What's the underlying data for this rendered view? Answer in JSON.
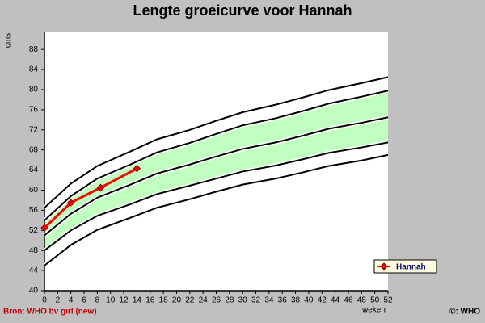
{
  "chart_data": {
    "type": "line",
    "title": "Lengte groeicurve voor Hannah",
    "y_label": "cms",
    "x_label": "weken",
    "source": "Bron: WHO bv girl (new)",
    "copyright": "©: WHO",
    "x": [
      0,
      4,
      8,
      13,
      17,
      22,
      26,
      30,
      35,
      39,
      43,
      48,
      52
    ],
    "series": [
      {
        "color": "#000000",
        "values": [
          56.5,
          61.3,
          64.8,
          67.7,
          70.1,
          72.0,
          73.8,
          75.5,
          77.0,
          78.4,
          79.9,
          81.3,
          82.5
        ]
      },
      {
        "color": "#000000",
        "values": [
          54,
          58.8,
          62.3,
          65.1,
          67.5,
          69.4,
          71.2,
          72.9,
          74.3,
          75.7,
          77.2,
          78.6,
          79.8
        ]
      },
      {
        "color": "#000000",
        "values": [
          51,
          55.3,
          58.5,
          61.1,
          63.3,
          65.1,
          66.7,
          68.2,
          69.5,
          70.8,
          72.2,
          73.4,
          74.5
        ]
      },
      {
        "color": "#000000",
        "values": [
          48,
          52.0,
          54.9,
          57.2,
          59.2,
          60.9,
          62.3,
          63.7,
          64.9,
          66.1,
          67.4,
          68.5,
          69.5
        ]
      },
      {
        "color": "#000000",
        "values": [
          45,
          49.1,
          52.1,
          54.5,
          56.5,
          58.2,
          59.7,
          61.1,
          62.3,
          63.5,
          64.8,
          65.9,
          67
        ]
      },
      {
        "name": "Hannah",
        "color": "#ff0000",
        "x": [
          0,
          4,
          8.5,
          14
        ],
        "values": [
          52.5,
          57.5,
          60.5,
          64.3
        ]
      }
    ],
    "fill_between": {
      "series": [
        1,
        3
      ],
      "color": "#c0ffc0"
    },
    "xlim": [
      0,
      52
    ],
    "xticks": [
      0,
      2,
      4,
      6,
      8,
      10,
      12,
      14,
      16,
      18,
      20,
      22,
      24,
      26,
      28,
      30,
      32,
      34,
      36,
      38,
      40,
      42,
      44,
      46,
      48,
      50,
      52
    ],
    "ylim": [
      40,
      91.4
    ],
    "yticks": [
      40,
      44,
      48,
      52,
      56,
      60,
      64,
      68,
      72,
      76,
      80,
      84,
      88
    ],
    "legend": "lower right"
  }
}
